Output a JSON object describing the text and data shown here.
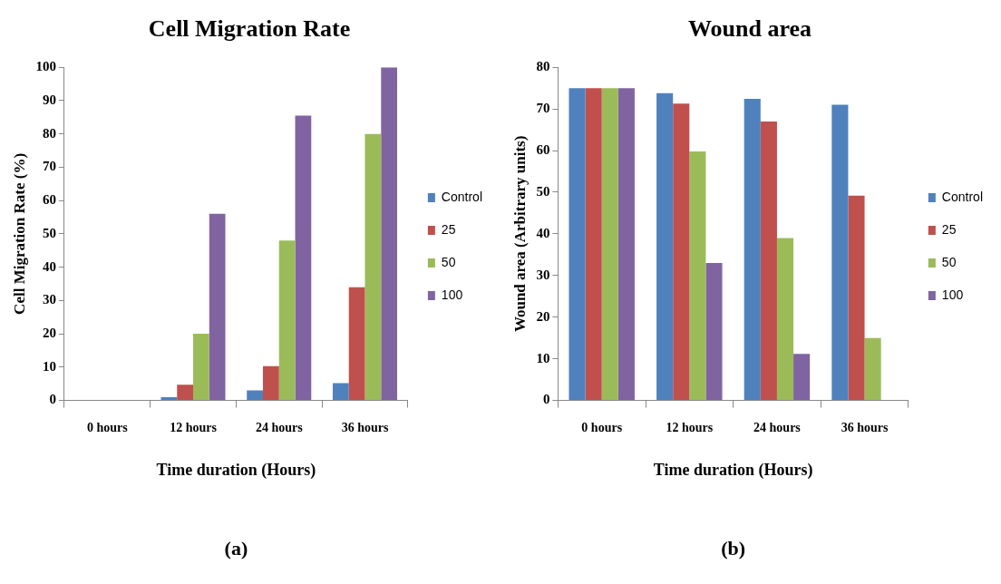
{
  "chart_data": [
    {
      "type": "bar",
      "title": "Cell Migration Rate",
      "xlabel": "Time duration (Hours)",
      "ylabel": "Cell Migration Rate (%)",
      "categories": [
        "0 hours",
        "12 hours",
        "24 hours",
        "36 hours"
      ],
      "series": [
        {
          "name": "Control",
          "color": "#4f81bd",
          "values": [
            0,
            1,
            3,
            5.2
          ]
        },
        {
          "name": "25",
          "color": "#c0504d",
          "values": [
            0,
            4.7,
            10.3,
            34
          ]
        },
        {
          "name": "50",
          "color": "#9bbb59",
          "values": [
            0,
            20,
            48,
            80
          ]
        },
        {
          "name": "100",
          "color": "#8064a2",
          "values": [
            0,
            56,
            85.5,
            100
          ]
        }
      ],
      "ylim": [
        0,
        100
      ],
      "yticks": [
        0,
        10,
        20,
        30,
        40,
        50,
        60,
        70,
        80,
        90,
        100
      ],
      "grid": false,
      "legend": "right",
      "annotations": [
        "(a)"
      ]
    },
    {
      "type": "bar",
      "title": "Wound area",
      "xlabel": "Time duration (Hours)",
      "ylabel": "Wound area (Arbitrary units)",
      "categories": [
        "0 hours",
        "12 hours",
        "24 hours",
        "36 hours"
      ],
      "series": [
        {
          "name": "Control",
          "color": "#4f81bd",
          "values": [
            75,
            73.8,
            72.4,
            71
          ]
        },
        {
          "name": "25",
          "color": "#c0504d",
          "values": [
            75,
            71.3,
            67,
            49.2
          ]
        },
        {
          "name": "50",
          "color": "#9bbb59",
          "values": [
            75,
            59.8,
            39,
            15
          ]
        },
        {
          "name": "100",
          "color": "#8064a2",
          "values": [
            75,
            33,
            11.2,
            0
          ]
        }
      ],
      "ylim": [
        0,
        80
      ],
      "yticks": [
        0,
        10,
        20,
        30,
        40,
        50,
        60,
        70,
        80
      ],
      "grid": false,
      "legend": "right",
      "annotations": [
        "(b)"
      ]
    }
  ]
}
